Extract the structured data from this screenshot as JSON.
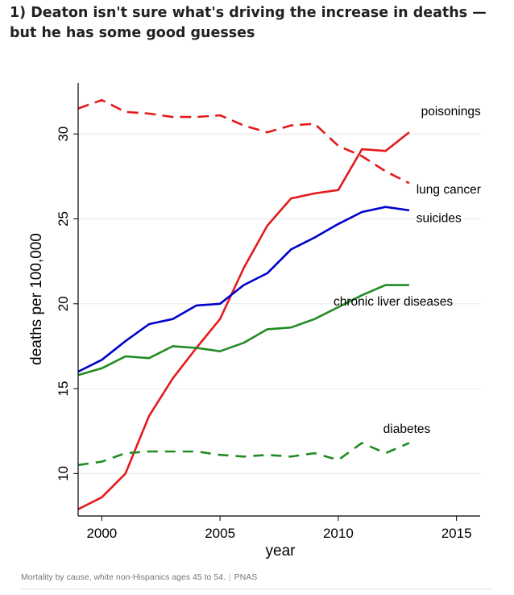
{
  "headline": {
    "line1": "1) Deaton isn't sure what's driving the increase in deaths —",
    "line2": "but he has some good guesses"
  },
  "caption": {
    "text": "Mortality by cause, white non-Hispanics ages 45 to 54.",
    "source": "PNAS"
  },
  "chart_data": {
    "type": "line",
    "xlabel": "year",
    "ylabel": "deaths per 100,000",
    "xlim": [
      1999,
      2016
    ],
    "ylim": [
      7.5,
      33
    ],
    "x_ticks": [
      2000,
      2005,
      2010,
      2015
    ],
    "y_ticks": [
      10,
      15,
      20,
      25,
      30
    ],
    "grid": true,
    "x": [
      1999,
      2000,
      2001,
      2002,
      2003,
      2004,
      2005,
      2006,
      2007,
      2008,
      2009,
      2010,
      2011,
      2012,
      2013
    ],
    "series": [
      {
        "name": "poisonings",
        "color": "#e41a1c",
        "dash": "solid",
        "values": [
          7.9,
          8.6,
          10.0,
          13.4,
          15.6,
          17.4,
          19.1,
          22.1,
          24.6,
          26.2,
          26.5,
          26.7,
          29.1,
          29.0,
          30.1
        ]
      },
      {
        "name": "lung cancer",
        "color": "#e41a1c",
        "dash": "longdash",
        "values": [
          31.5,
          32.0,
          31.3,
          31.2,
          31.0,
          31.0,
          31.1,
          30.5,
          30.1,
          30.5,
          30.6,
          29.3,
          28.7,
          27.8,
          27.1
        ]
      },
      {
        "name": "suicides",
        "color": "#0000cc",
        "dash": "solid",
        "values": [
          16.0,
          16.7,
          17.8,
          18.8,
          19.1,
          19.9,
          20.0,
          21.1,
          21.8,
          23.2,
          23.9,
          24.7,
          25.4,
          25.7,
          25.5
        ]
      },
      {
        "name": "chronic liver diseases",
        "color": "#228b22",
        "dash": "solid",
        "values": [
          15.8,
          16.2,
          16.9,
          16.8,
          17.5,
          17.4,
          17.2,
          17.7,
          18.5,
          18.6,
          19.1,
          19.8,
          20.5,
          21.1,
          21.1
        ]
      },
      {
        "name": "diabetes",
        "color": "#228b22",
        "dash": "dash",
        "values": [
          10.5,
          10.7,
          11.2,
          11.3,
          11.3,
          11.3,
          11.1,
          11.0,
          11.1,
          11.0,
          11.2,
          10.8,
          11.8,
          11.2,
          11.8
        ]
      }
    ],
    "annotations": [
      {
        "text": "poisonings",
        "x": 2013.5,
        "y": 31.1
      },
      {
        "text": "lung cancer",
        "x": 2013.3,
        "y": 26.5
      },
      {
        "text": "suicides",
        "x": 2013.3,
        "y": 24.8
      },
      {
        "text": "chronic liver diseases",
        "x": 2009.8,
        "y": 19.9
      },
      {
        "text": "diabetes",
        "x": 2011.9,
        "y": 12.4
      }
    ]
  }
}
